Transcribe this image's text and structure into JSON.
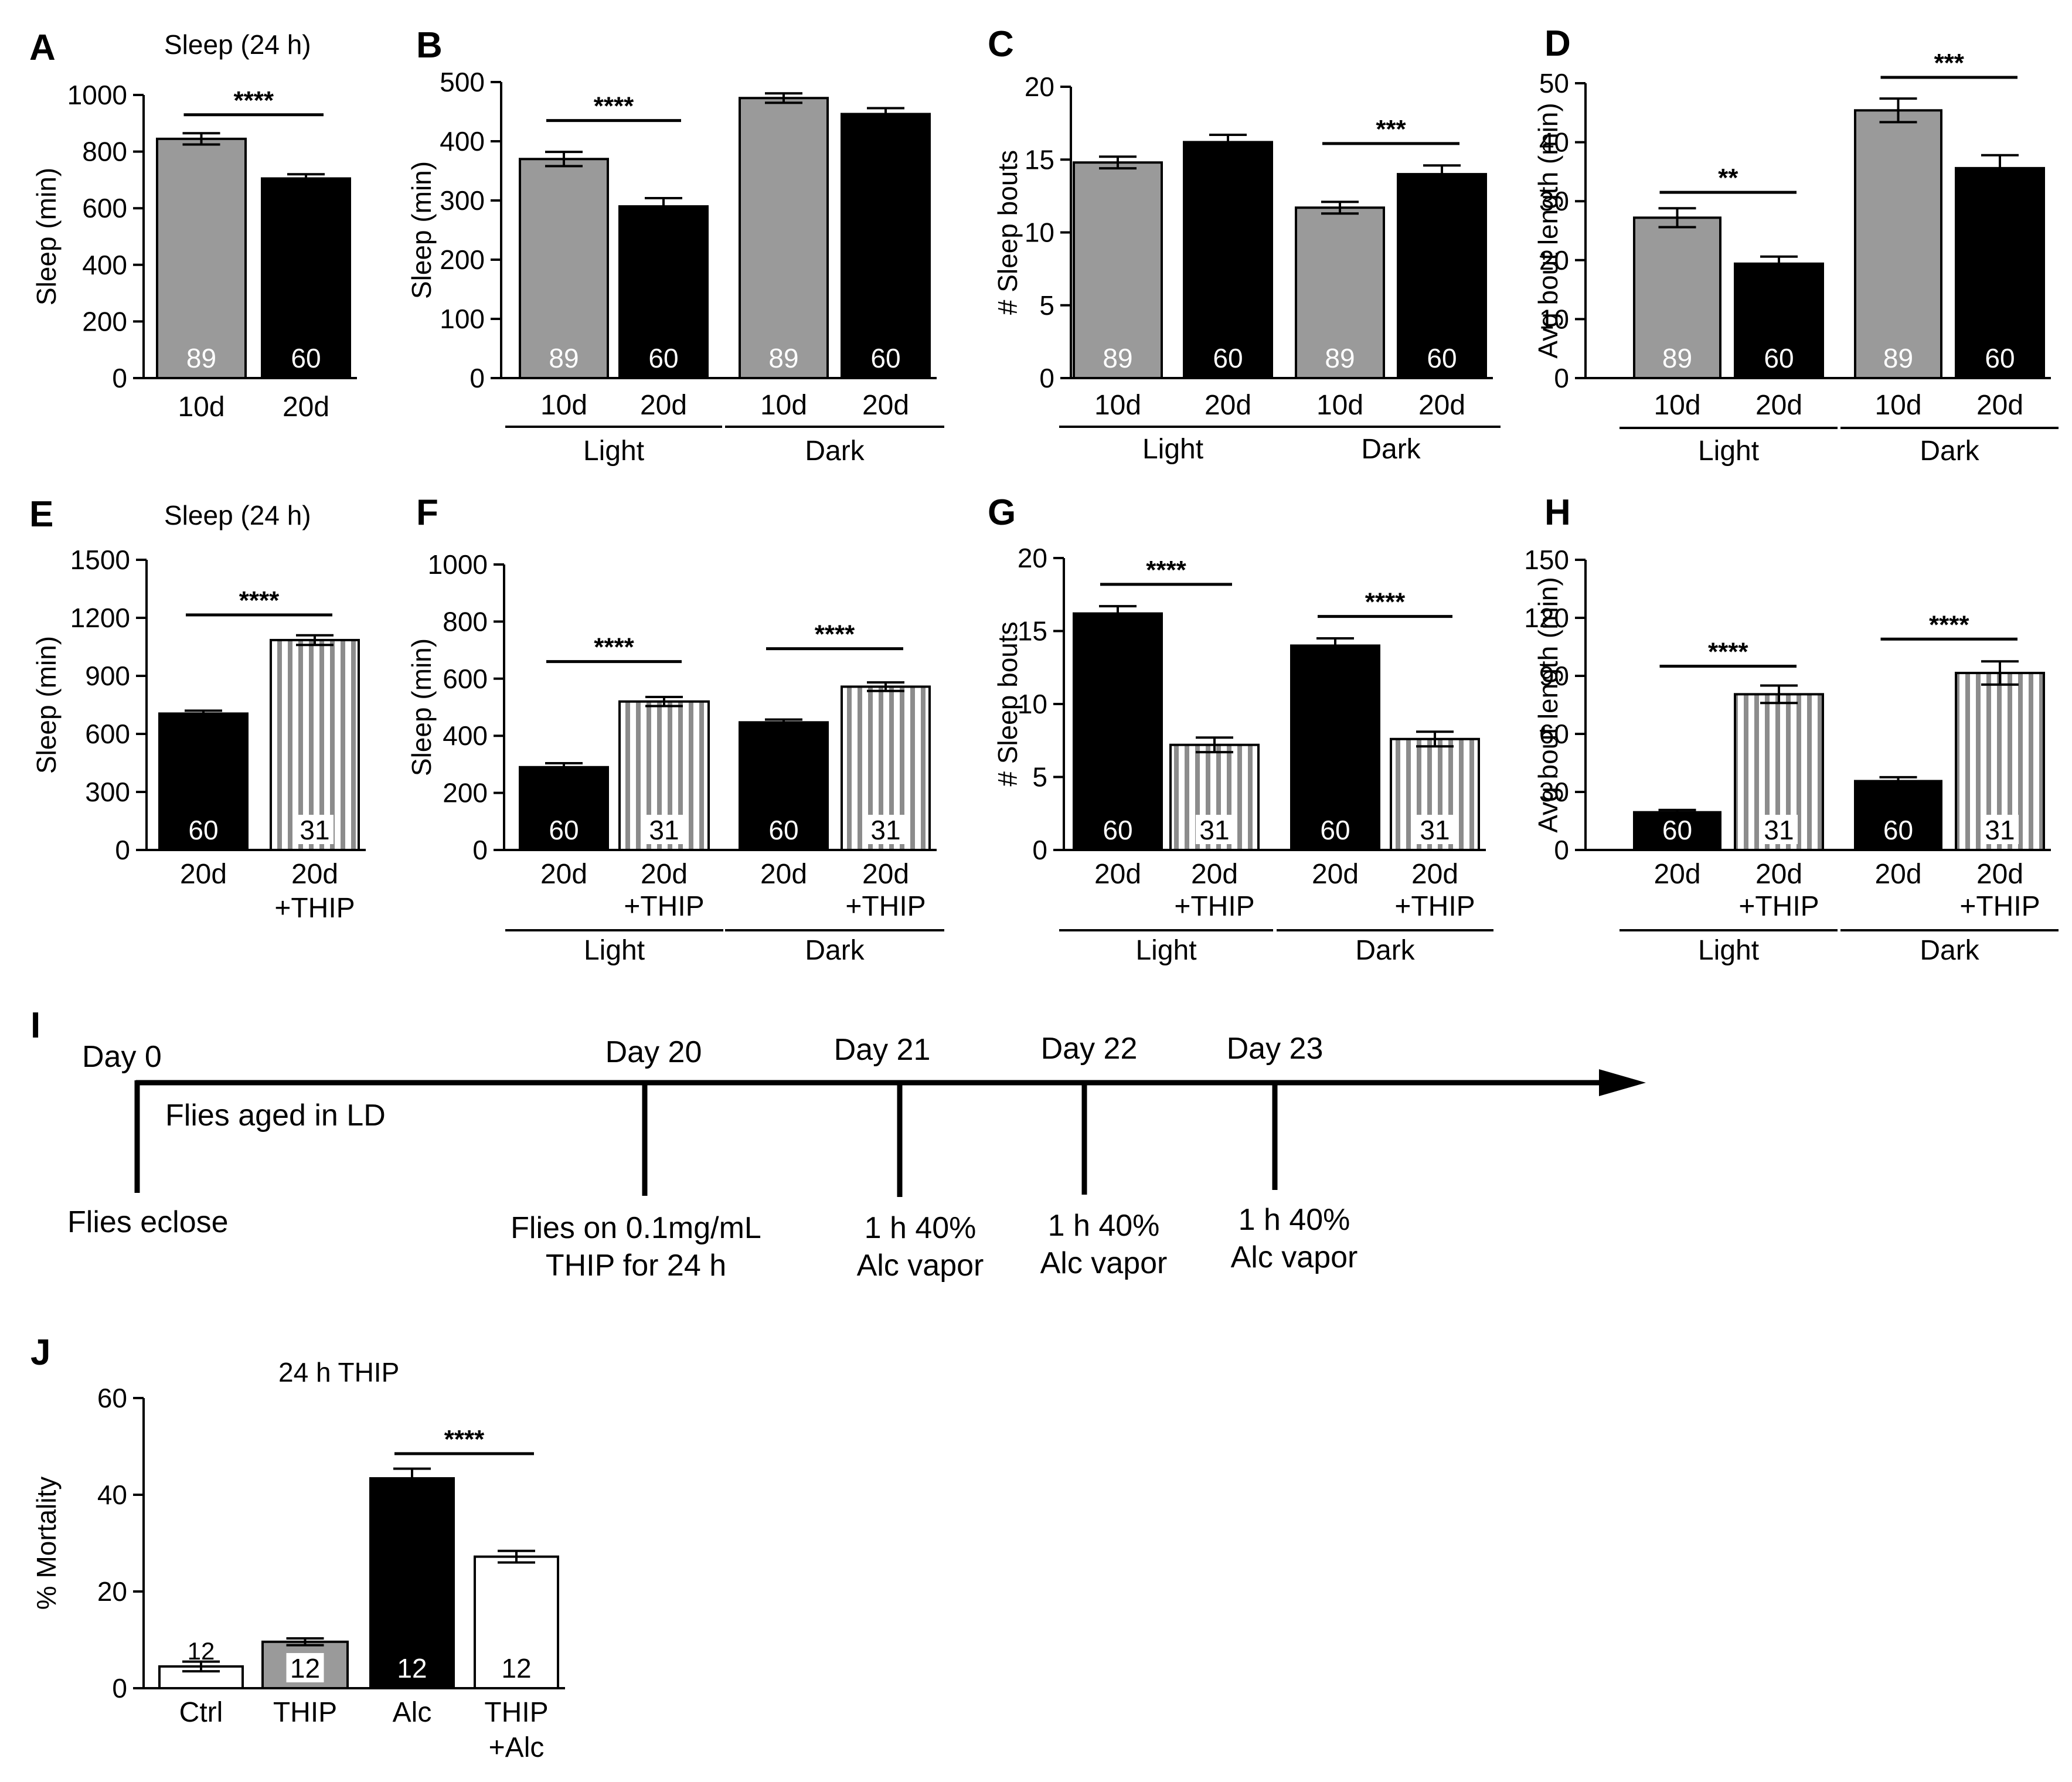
{
  "chart_data": [
    {
      "id": "A",
      "type": "bar",
      "panel_letter": "A",
      "title": "Sleep (24 h)",
      "ylabel": "Sleep (min)",
      "ylim": [
        0,
        1000
      ],
      "yticks": [
        "0",
        "200",
        "400",
        "600",
        "800",
        "1000"
      ],
      "categories": [
        "10d",
        "20d"
      ],
      "groups": [],
      "bars": [
        {
          "label": "10d",
          "value": 845,
          "err": 20,
          "style": "gray",
          "n": "89"
        },
        {
          "label": "20d",
          "value": 705,
          "err": 15,
          "style": "black",
          "n": "60"
        }
      ],
      "sig": [
        {
          "from": 0,
          "to": 1,
          "y": 930,
          "label": "****"
        }
      ]
    },
    {
      "id": "B",
      "type": "bar",
      "panel_letter": "B",
      "title": "",
      "ylabel": "Sleep (min)",
      "ylim": [
        0,
        500
      ],
      "yticks": [
        "0",
        "100",
        "200",
        "300",
        "400",
        "500"
      ],
      "categories": [
        "10d",
        "20d",
        "10d",
        "20d"
      ],
      "groups": [
        {
          "label": "Light",
          "from": 0,
          "to": 1
        },
        {
          "label": "Dark",
          "from": 2,
          "to": 3
        }
      ],
      "bars": [
        {
          "label": "10d",
          "value": 370,
          "err": 12,
          "style": "gray",
          "n": "89"
        },
        {
          "label": "20d",
          "value": 290,
          "err": 14,
          "style": "black",
          "n": "60"
        },
        {
          "label": "10d",
          "value": 473,
          "err": 8,
          "style": "gray",
          "n": "89"
        },
        {
          "label": "20d",
          "value": 446,
          "err": 10,
          "style": "black",
          "n": "60"
        }
      ],
      "sig": [
        {
          "from": 0,
          "to": 1,
          "y": 435,
          "label": "****"
        }
      ]
    },
    {
      "id": "C",
      "type": "bar",
      "panel_letter": "C",
      "title": "",
      "ylabel": "# Sleep bouts",
      "ylim": [
        0,
        20
      ],
      "yticks": [
        "0",
        "5",
        "10",
        "15",
        "20"
      ],
      "categories": [
        "10d",
        "20d",
        "10d",
        "20d"
      ],
      "groups": [
        {
          "label": "Light",
          "from": 0,
          "to": 1
        },
        {
          "label": "Dark",
          "from": 2,
          "to": 3
        }
      ],
      "bars": [
        {
          "label": "10d",
          "value": 14.8,
          "err": 0.4,
          "style": "gray",
          "n": "89"
        },
        {
          "label": "20d",
          "value": 16.2,
          "err": 0.5,
          "style": "black",
          "n": "60"
        },
        {
          "label": "10d",
          "value": 11.7,
          "err": 0.4,
          "style": "gray",
          "n": "89"
        },
        {
          "label": "20d",
          "value": 14.0,
          "err": 0.6,
          "style": "black",
          "n": "60"
        }
      ],
      "sig": [
        {
          "from": 2,
          "to": 3,
          "y": 16.1,
          "label": "***"
        }
      ]
    },
    {
      "id": "D",
      "type": "bar",
      "panel_letter": "D",
      "title": "",
      "ylabel": "Avg bout length (min)",
      "ylim": [
        0,
        50
      ],
      "yticks": [
        "0",
        "10",
        "20",
        "30",
        "40",
        "50"
      ],
      "categories": [
        "10d",
        "20d",
        "10d",
        "20d"
      ],
      "groups": [
        {
          "label": "Light",
          "from": 0,
          "to": 1
        },
        {
          "label": "Dark",
          "from": 2,
          "to": 3
        }
      ],
      "bars": [
        {
          "label": "10d",
          "value": 27.2,
          "err": 1.6,
          "style": "gray",
          "n": "89"
        },
        {
          "label": "20d",
          "value": 19.4,
          "err": 1.2,
          "style": "black",
          "n": "60"
        },
        {
          "label": "10d",
          "value": 45.4,
          "err": 2.0,
          "style": "gray",
          "n": "89"
        },
        {
          "label": "20d",
          "value": 35.6,
          "err": 2.2,
          "style": "black",
          "n": "60"
        }
      ],
      "sig": [
        {
          "from": 0,
          "to": 1,
          "y": 31.5,
          "label": "**"
        },
        {
          "from": 2,
          "to": 3,
          "y": 51,
          "label": "***"
        }
      ]
    },
    {
      "id": "E",
      "type": "bar",
      "panel_letter": "E",
      "title": "Sleep (24 h)",
      "ylabel": "Sleep (min)",
      "ylim": [
        0,
        1500
      ],
      "yticks": [
        "0",
        "300",
        "600",
        "900",
        "1200",
        "1500"
      ],
      "categories": [
        "20d",
        "20d +THIP"
      ],
      "groups": [],
      "bars": [
        {
          "label": "20d",
          "value": 705,
          "err": 15,
          "style": "black",
          "n": "60"
        },
        {
          "label": "20d +THIP",
          "value": 1085,
          "err": 25,
          "style": "striped",
          "n": "31"
        }
      ],
      "sig": [
        {
          "from": 0,
          "to": 1,
          "y": 1215,
          "label": "****"
        }
      ]
    },
    {
      "id": "F",
      "type": "bar",
      "panel_letter": "F",
      "title": "",
      "ylabel": "Sleep (min)",
      "ylim": [
        0,
        1000
      ],
      "yticks": [
        "0",
        "200",
        "400",
        "600",
        "800",
        "1000"
      ],
      "categories": [
        "20d",
        "20d +THIP",
        "20d",
        "20d +THIP"
      ],
      "groups": [
        {
          "label": "Light",
          "from": 0,
          "to": 1
        },
        {
          "label": "Dark",
          "from": 2,
          "to": 3
        }
      ],
      "bars": [
        {
          "label": "20d",
          "value": 290,
          "err": 14,
          "style": "black",
          "n": "60"
        },
        {
          "label": "20d +THIP",
          "value": 520,
          "err": 16,
          "style": "striped",
          "n": "31"
        },
        {
          "label": "20d",
          "value": 447,
          "err": 10,
          "style": "black",
          "n": "60"
        },
        {
          "label": "20d +THIP",
          "value": 572,
          "err": 15,
          "style": "striped",
          "n": "31"
        }
      ],
      "sig": [
        {
          "from": 0,
          "to": 1,
          "y": 660,
          "label": "****"
        },
        {
          "from": 2,
          "to": 3,
          "y": 705,
          "label": "****"
        }
      ]
    },
    {
      "id": "G",
      "type": "bar",
      "panel_letter": "G",
      "title": "",
      "ylabel": "# Sleep bouts",
      "ylim": [
        0,
        20
      ],
      "yticks": [
        "0",
        "5",
        "10",
        "15",
        "20"
      ],
      "categories": [
        "20d",
        "20d +THIP",
        "20d",
        "20d +THIP"
      ],
      "groups": [
        {
          "label": "Light",
          "from": 0,
          "to": 1
        },
        {
          "label": "Dark",
          "from": 2,
          "to": 3
        }
      ],
      "bars": [
        {
          "label": "20d",
          "value": 16.2,
          "err": 0.5,
          "style": "black",
          "n": "60"
        },
        {
          "label": "20d +THIP",
          "value": 7.2,
          "err": 0.5,
          "style": "striped",
          "n": "31"
        },
        {
          "label": "20d",
          "value": 14.0,
          "err": 0.5,
          "style": "black",
          "n": "60"
        },
        {
          "label": "20d +THIP",
          "value": 7.6,
          "err": 0.5,
          "style": "striped",
          "n": "31"
        }
      ],
      "sig": [
        {
          "from": 0,
          "to": 1,
          "y": 18.2,
          "label": "****"
        },
        {
          "from": 2,
          "to": 3,
          "y": 16.0,
          "label": "****"
        }
      ]
    },
    {
      "id": "H",
      "type": "bar",
      "panel_letter": "H",
      "title": "",
      "ylabel": "Avg bout length (min)",
      "ylim": [
        0,
        150
      ],
      "yticks": [
        "0",
        "30",
        "60",
        "90",
        "120",
        "150"
      ],
      "categories": [
        "20d",
        "20d +THIP",
        "20d",
        "20d +THIP"
      ],
      "groups": [
        {
          "label": "Light",
          "from": 0,
          "to": 1
        },
        {
          "label": "Dark",
          "from": 2,
          "to": 3
        }
      ],
      "bars": [
        {
          "label": "20d",
          "value": 19.5,
          "err": 1.2,
          "style": "black",
          "n": "60"
        },
        {
          "label": "20d +THIP",
          "value": 80.5,
          "err": 4.5,
          "style": "striped",
          "n": "31"
        },
        {
          "label": "20d",
          "value": 35.6,
          "err": 2.0,
          "style": "black",
          "n": "60"
        },
        {
          "label": "20d +THIP",
          "value": 91.5,
          "err": 6.0,
          "style": "striped",
          "n": "31"
        }
      ],
      "sig": [
        {
          "from": 0,
          "to": 1,
          "y": 95,
          "label": "****"
        },
        {
          "from": 2,
          "to": 3,
          "y": 109,
          "label": "****"
        }
      ]
    },
    {
      "id": "J",
      "type": "bar",
      "panel_letter": "J",
      "title": "24 h THIP",
      "ylabel": "% Mortality",
      "ylim": [
        0,
        60
      ],
      "yticks": [
        "0",
        "20",
        "40",
        "60"
      ],
      "categories": [
        "Ctrl",
        "THIP",
        "Alc",
        "THIP +Alc"
      ],
      "groups": [],
      "bars": [
        {
          "label": "Ctrl",
          "value": 4.5,
          "err": 1.0,
          "style": "white",
          "n": "12",
          "n_pos": "above"
        },
        {
          "label": "THIP",
          "value": 9.6,
          "err": 0.7,
          "style": "gray",
          "n": "12"
        },
        {
          "label": "Alc",
          "value": 43.4,
          "err": 2.0,
          "style": "black",
          "n": "12"
        },
        {
          "label": "THIP +Alc",
          "value": 27.2,
          "err": 1.2,
          "style": "white",
          "n": "12"
        }
      ],
      "sig": [
        {
          "from": 2,
          "to": 3,
          "y": 48.5,
          "label": "****"
        }
      ]
    }
  ],
  "timeline": {
    "panel_letter": "I",
    "days": [
      "Day 0",
      "Day 20",
      "Day 21",
      "Day 22",
      "Day 23"
    ],
    "period_label": "Flies aged in LD",
    "events": [
      [
        "Flies eclose"
      ],
      [
        "Flies on 0.1mg/mL",
        "THIP for 24 h"
      ],
      [
        "1 h 40%",
        "Alc vapor"
      ],
      [
        "1 h 40%",
        "Alc vapor"
      ],
      [
        "1 h 40%",
        "Alc vapor"
      ]
    ]
  }
}
